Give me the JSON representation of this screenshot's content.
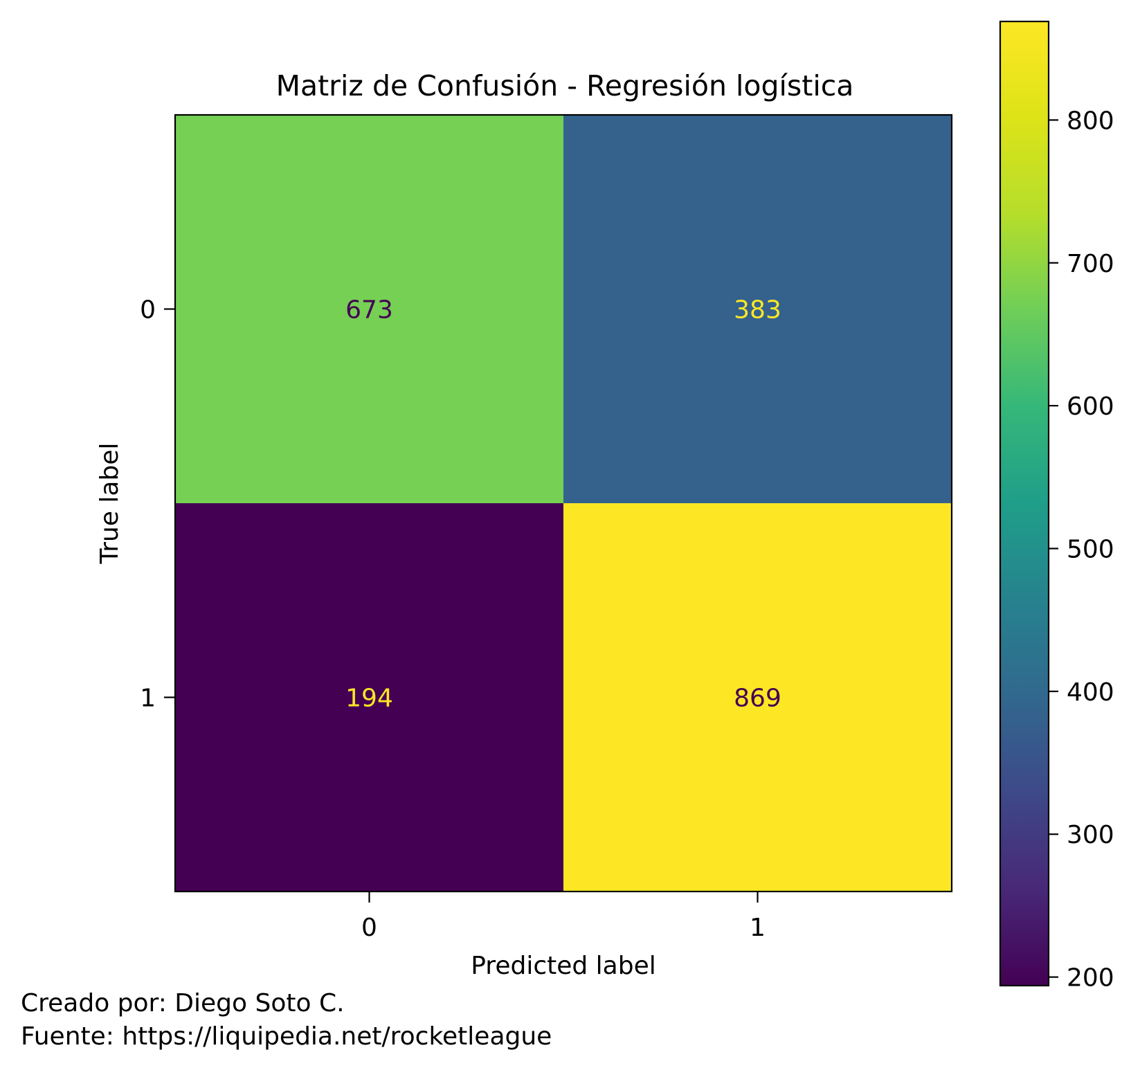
{
  "chart_data": {
    "type": "heatmap",
    "title": "Matriz de Confusión - Regresión logística",
    "xlabel": "Predicted label",
    "ylabel": "True label",
    "x_categories": [
      "0",
      "1"
    ],
    "y_categories": [
      "0",
      "1"
    ],
    "values": [
      [
        673,
        383
      ],
      [
        194,
        869
      ]
    ],
    "colormap": "viridis",
    "colorbar": {
      "range": [
        194,
        869
      ],
      "ticks": [
        200,
        300,
        400,
        500,
        600,
        700,
        800
      ]
    },
    "text_colors": {
      "dark": "#440154",
      "light": "#fde725"
    }
  },
  "footer": {
    "line1": "Creado por: Diego Soto C.",
    "line2": "Fuente: https://liquipedia.net/rocketleague"
  }
}
